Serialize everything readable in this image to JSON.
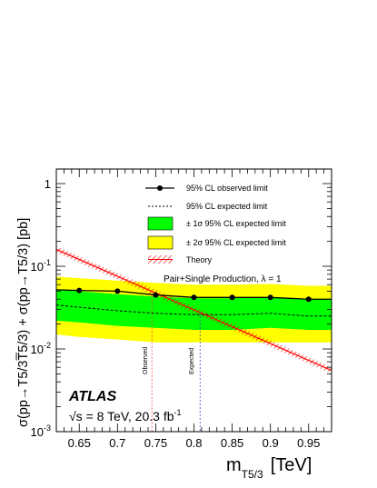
{
  "chart_data": {
    "type": "line",
    "xlabel_main": "m",
    "xlabel_sub": "T5/3",
    "xlabel_unit": "[TeV]",
    "ylabel": "σ(pp→T5/3T̅5/3) + σ(pp→T5/3) [pb]",
    "y_scale": "log",
    "xlim": [
      0.62,
      0.98
    ],
    "ylim": [
      0.001,
      1.5
    ],
    "x_ticks": [
      0.65,
      0.7,
      0.75,
      0.8,
      0.85,
      0.9,
      0.95
    ],
    "y_ticks": [
      {
        "value": 0.001,
        "base": "10",
        "exp": "-3"
      },
      {
        "value": 0.01,
        "base": "10",
        "exp": "-2"
      },
      {
        "value": 0.1,
        "base": "10",
        "exp": "-1"
      },
      {
        "value": 1,
        "base": "1",
        "exp": ""
      }
    ],
    "observed": {
      "x": [
        0.62,
        0.65,
        0.7,
        0.75,
        0.8,
        0.85,
        0.9,
        0.95,
        0.98
      ],
      "y": [
        0.052,
        0.051,
        0.05,
        0.045,
        0.042,
        0.042,
        0.042,
        0.04,
        0.04
      ]
    },
    "expected": {
      "x": [
        0.62,
        0.65,
        0.7,
        0.75,
        0.8,
        0.85,
        0.9,
        0.95,
        0.98
      ],
      "y": [
        0.034,
        0.032,
        0.029,
        0.027,
        0.026,
        0.026,
        0.027,
        0.025,
        0.025
      ]
    },
    "band_1sigma": {
      "x": [
        0.62,
        0.65,
        0.7,
        0.75,
        0.8,
        0.85,
        0.9,
        0.95,
        0.98
      ],
      "low": [
        0.022,
        0.021,
        0.019,
        0.018,
        0.017,
        0.017,
        0.018,
        0.017,
        0.017
      ],
      "high": [
        0.052,
        0.05,
        0.046,
        0.043,
        0.041,
        0.041,
        0.042,
        0.04,
        0.04
      ]
    },
    "band_2sigma": {
      "x": [
        0.62,
        0.65,
        0.7,
        0.75,
        0.8,
        0.85,
        0.9,
        0.95,
        0.98
      ],
      "low": [
        0.015,
        0.014,
        0.013,
        0.012,
        0.012,
        0.012,
        0.012,
        0.012,
        0.012
      ],
      "high": [
        0.075,
        0.072,
        0.067,
        0.063,
        0.06,
        0.06,
        0.061,
        0.058,
        0.058
      ]
    },
    "theory": {
      "x": [
        0.62,
        0.98
      ],
      "y": [
        0.16,
        0.0055
      ]
    },
    "observed_limit_x": 0.745,
    "expected_limit_x": 0.808,
    "legend": {
      "observed": "95% CL observed limit",
      "expected": "95% CL expected limit",
      "one_sigma": "± 1σ 95% CL expected limit",
      "two_sigma": "± 2σ 95% CL expected limit",
      "theory": "Theory"
    },
    "annotations": {
      "production": "Pair+Single Production, λ = 1",
      "observed_tag": "Observed",
      "expected_tag": "Expected",
      "experiment": "ATLAS",
      "energy": "√s = 8 TeV, 20.3 fb",
      "energy_exp": "-1"
    },
    "colors": {
      "one_sigma": "#00ff00",
      "two_sigma": "#ffff00",
      "theory": "#ff0000",
      "observed": "#000000",
      "limit_lines_observed": "#ff4444",
      "limit_lines_expected": "#4444cc"
    }
  }
}
